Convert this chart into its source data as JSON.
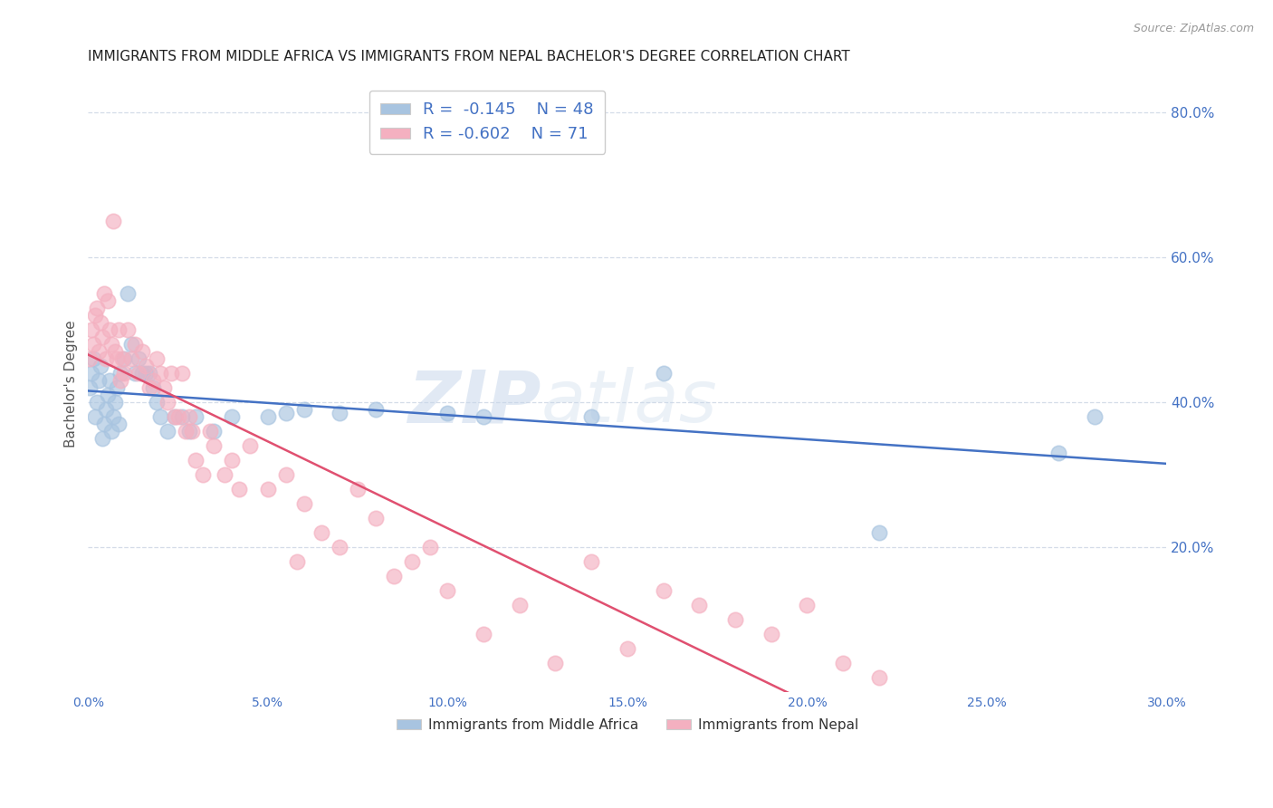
{
  "title": "IMMIGRANTS FROM MIDDLE AFRICA VS IMMIGRANTS FROM NEPAL BACHELOR'S DEGREE CORRELATION CHART",
  "source": "Source: ZipAtlas.com",
  "ylabel": "Bachelor's Degree",
  "right_yticks": [
    20.0,
    40.0,
    60.0,
    80.0
  ],
  "watermark": "ZIPatlas",
  "series": [
    {
      "label": "Immigrants from Middle Africa",
      "R": -0.145,
      "N": 48,
      "color_scatter": "#a8c4e0",
      "color_line": "#4472c4",
      "x": [
        0.05,
        0.1,
        0.15,
        0.2,
        0.25,
        0.3,
        0.35,
        0.4,
        0.45,
        0.5,
        0.55,
        0.6,
        0.65,
        0.7,
        0.75,
        0.8,
        0.85,
        0.9,
        1.0,
        1.1,
        1.2,
        1.3,
        1.4,
        1.5,
        1.6,
        1.7,
        1.8,
        1.9,
        2.0,
        2.2,
        2.4,
        2.6,
        2.8,
        3.0,
        3.5,
        4.0,
        5.0,
        5.5,
        6.0,
        7.0,
        8.0,
        10.0,
        11.0,
        14.0,
        16.0,
        22.0,
        27.0,
        28.0
      ],
      "y": [
        42.0,
        44.0,
        46.0,
        38.0,
        40.0,
        43.0,
        45.0,
        35.0,
        37.0,
        39.0,
        41.0,
        43.0,
        36.0,
        38.0,
        40.0,
        42.0,
        37.0,
        44.0,
        46.0,
        55.0,
        48.0,
        44.0,
        46.0,
        44.0,
        44.0,
        44.0,
        42.0,
        40.0,
        38.0,
        36.0,
        38.0,
        38.0,
        36.0,
        38.0,
        36.0,
        38.0,
        38.0,
        38.5,
        39.0,
        38.5,
        39.0,
        38.5,
        38.0,
        38.0,
        44.0,
        22.0,
        33.0,
        38.0
      ]
    },
    {
      "label": "Immigrants from Nepal",
      "R": -0.602,
      "N": 71,
      "color_scatter": "#f4b0c0",
      "color_line": "#e05070",
      "x": [
        0.05,
        0.1,
        0.15,
        0.2,
        0.25,
        0.3,
        0.35,
        0.4,
        0.45,
        0.5,
        0.55,
        0.6,
        0.65,
        0.7,
        0.75,
        0.8,
        0.85,
        0.9,
        0.95,
        1.0,
        1.1,
        1.2,
        1.3,
        1.4,
        1.5,
        1.6,
        1.7,
        1.8,
        1.9,
        2.0,
        2.1,
        2.2,
        2.3,
        2.4,
        2.5,
        2.6,
        2.7,
        2.8,
        2.9,
        3.0,
        3.2,
        3.4,
        3.5,
        3.8,
        4.0,
        4.2,
        4.5,
        5.0,
        5.5,
        5.8,
        6.0,
        6.5,
        7.0,
        7.5,
        8.0,
        8.5,
        9.0,
        9.5,
        10.0,
        11.0,
        12.0,
        13.0,
        14.0,
        15.0,
        16.0,
        17.0,
        18.0,
        19.0,
        20.0,
        21.0,
        22.0
      ],
      "y": [
        46.0,
        50.0,
        48.0,
        52.0,
        53.0,
        47.0,
        51.0,
        49.0,
        55.0,
        46.0,
        54.0,
        50.0,
        48.0,
        65.0,
        47.0,
        46.0,
        50.0,
        43.0,
        46.0,
        44.0,
        50.0,
        46.0,
        48.0,
        44.0,
        47.0,
        45.0,
        42.0,
        43.0,
        46.0,
        44.0,
        42.0,
        40.0,
        44.0,
        38.0,
        38.0,
        44.0,
        36.0,
        38.0,
        36.0,
        32.0,
        30.0,
        36.0,
        34.0,
        30.0,
        32.0,
        28.0,
        34.0,
        28.0,
        30.0,
        18.0,
        26.0,
        22.0,
        20.0,
        28.0,
        24.0,
        16.0,
        18.0,
        20.0,
        14.0,
        8.0,
        12.0,
        4.0,
        18.0,
        6.0,
        14.0,
        12.0,
        10.0,
        8.0,
        12.0,
        4.0,
        2.0
      ]
    }
  ],
  "xmin": 0.0,
  "xmax": 30.0,
  "ymin": 0.0,
  "ymax": 85.0,
  "background_color": "#ffffff",
  "grid_color": "#d4dce8",
  "title_fontsize": 11,
  "axis_label_color": "#4472c4",
  "legend_R_color": "#4472c4"
}
